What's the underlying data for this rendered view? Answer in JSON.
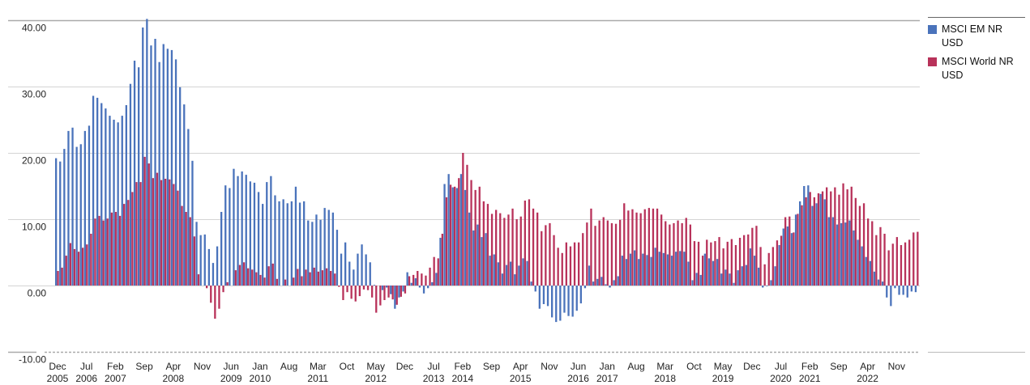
{
  "chart_data": {
    "type": "bar",
    "title": "",
    "xlabel": "",
    "ylabel": "",
    "ylim": [
      -10,
      40
    ],
    "yticks": [
      40,
      30,
      20,
      10,
      0,
      -10
    ],
    "ytick_labels": [
      "40.00",
      "30.00",
      "20.00",
      "10.00",
      "0.00",
      "-10.00"
    ],
    "grid": true,
    "legend_position": "right",
    "x_start": "Dec 2005",
    "x_end": "Apr 2023",
    "x_frequency": "monthly",
    "xtick_labels": [
      {
        "index": 0,
        "month": "Dec",
        "year": "2005"
      },
      {
        "index": 7,
        "month": "Jul",
        "year": "2006"
      },
      {
        "index": 14,
        "month": "Feb",
        "year": "2007"
      },
      {
        "index": 21,
        "month": "Sep",
        "year": ""
      },
      {
        "index": 28,
        "month": "Apr",
        "year": "2008"
      },
      {
        "index": 35,
        "month": "Nov",
        "year": ""
      },
      {
        "index": 42,
        "month": "Jun",
        "year": "2009"
      },
      {
        "index": 49,
        "month": "Jan",
        "year": "2010"
      },
      {
        "index": 56,
        "month": "Aug",
        "year": ""
      },
      {
        "index": 63,
        "month": "Mar",
        "year": "2011"
      },
      {
        "index": 70,
        "month": "Oct",
        "year": ""
      },
      {
        "index": 77,
        "month": "May",
        "year": "2012"
      },
      {
        "index": 84,
        "month": "Dec",
        "year": ""
      },
      {
        "index": 91,
        "month": "Jul",
        "year": "2013"
      },
      {
        "index": 98,
        "month": "Feb",
        "year": "2014"
      },
      {
        "index": 105,
        "month": "Sep",
        "year": ""
      },
      {
        "index": 112,
        "month": "Apr",
        "year": "2015"
      },
      {
        "index": 119,
        "month": "Nov",
        "year": ""
      },
      {
        "index": 126,
        "month": "Jun",
        "year": "2016"
      },
      {
        "index": 133,
        "month": "Jan",
        "year": "2017"
      },
      {
        "index": 140,
        "month": "Aug",
        "year": ""
      },
      {
        "index": 147,
        "month": "Mar",
        "year": "2018"
      },
      {
        "index": 154,
        "month": "Oct",
        "year": ""
      },
      {
        "index": 161,
        "month": "May",
        "year": "2019"
      },
      {
        "index": 168,
        "month": "Dec",
        "year": ""
      },
      {
        "index": 175,
        "month": "Jul",
        "year": "2020"
      },
      {
        "index": 182,
        "month": "Feb",
        "year": "2021"
      },
      {
        "index": 189,
        "month": "Sep",
        "year": ""
      },
      {
        "index": 196,
        "month": "Apr",
        "year": "2022"
      },
      {
        "index": 203,
        "month": "Nov",
        "year": ""
      }
    ],
    "series": [
      {
        "name": "MSCI EM NR USD",
        "color": "#4a73bb",
        "values": [
          19.2,
          18.7,
          20.6,
          23.3,
          23.8,
          20.9,
          21.3,
          23.3,
          24.1,
          28.6,
          28.3,
          27.5,
          26.7,
          25.6,
          25.0,
          24.6,
          25.6,
          27.2,
          30.4,
          33.9,
          32.9,
          38.9,
          40.2,
          36.2,
          37.2,
          33.7,
          36.4,
          35.7,
          35.5,
          34.1,
          29.9,
          27.3,
          23.6,
          18.8,
          9.6,
          7.6,
          7.7,
          5.5,
          3.4,
          5.9,
          11.1,
          15.1,
          14.7,
          17.6,
          16.5,
          17.2,
          16.7,
          15.7,
          15.5,
          14.1,
          12.3,
          15.6,
          16.5,
          13.6,
          12.7,
          13.0,
          12.4,
          12.7,
          14.9,
          12.5,
          12.7,
          9.8,
          9.6,
          10.7,
          9.9,
          11.7,
          11.4,
          11.0,
          8.4,
          4.8,
          6.5,
          3.6,
          2.4,
          4.8,
          6.2,
          4.7,
          3.5,
          0.1,
          0,
          -0.7,
          -0.3,
          -1.3,
          -3.5,
          -1.8,
          -0.9,
          2.0,
          0.4,
          1.1,
          -0.3,
          -1.2,
          -0.4,
          0.5,
          1.9,
          7.2,
          15.3,
          16.8,
          14.8,
          14.7,
          16.8,
          14.4,
          11.0,
          8.3,
          9.2,
          7.3,
          7.9,
          4.5,
          4.7,
          3.5,
          1.8,
          3.1,
          3.6,
          1.7,
          3.0,
          4.1,
          3.7,
          0.6,
          -0.9,
          -3.5,
          -2.8,
          -3.1,
          -4.8,
          -5.5,
          -5.3,
          -4.1,
          -4.6,
          -4.7,
          -3.8,
          -2.7,
          -0.4,
          3.0,
          0.6,
          1.0,
          1.3,
          0.2,
          -0.3,
          0.8,
          1.4,
          4.5,
          4.0,
          4.8,
          5.3,
          4.0,
          4.8,
          4.6,
          4.3,
          5.7,
          5.1,
          4.9,
          4.7,
          4.5,
          5.1,
          5.2,
          5.1,
          3.6,
          0.8,
          1.9,
          1.6,
          4.8,
          4.1,
          3.7,
          4.0,
          1.8,
          2.4,
          1.8,
          0.4,
          2.3,
          2.9,
          3.1,
          5.6,
          4.5,
          2.7,
          -0.3,
          -0.1,
          0.8,
          2.9,
          6.1,
          8.6,
          8.9,
          7.9,
          10.7,
          12.7,
          15.0,
          15.1,
          12.0,
          12.4,
          13.8,
          13.0,
          10.3,
          10.3,
          9.2,
          9.4,
          9.5,
          9.8,
          8.3,
          6.9,
          5.9,
          4.3,
          3.7,
          2.1,
          0.9,
          0.6,
          -1.8,
          -3.1,
          -0.4,
          -1.4,
          -1.4,
          -1.8,
          -0.9,
          -1.0
        ]
      },
      {
        "name": "MSCI World NR USD",
        "color": "#b8325a",
        "values": [
          2.2,
          2.7,
          4.5,
          6.4,
          5.5,
          5.1,
          5.7,
          6.2,
          7.8,
          10.1,
          10.5,
          9.8,
          10.1,
          11.0,
          11.1,
          10.5,
          12.3,
          12.9,
          14.1,
          15.6,
          15.6,
          19.4,
          18.4,
          16.2,
          17.0,
          15.9,
          16.1,
          16.0,
          15.3,
          14.3,
          12.0,
          11.1,
          10.3,
          7.4,
          1.7,
          0,
          -0.4,
          -2.6,
          -5.0,
          -3.5,
          -1.0,
          0.5,
          0,
          2.3,
          3.1,
          3.5,
          2.6,
          2.4,
          2.0,
          1.6,
          1.2,
          2.9,
          3.3,
          1.0,
          0,
          0.9,
          0,
          1.2,
          2.5,
          1.4,
          2.4,
          2.0,
          2.7,
          2.1,
          2.3,
          2.6,
          2.2,
          1.8,
          -0.2,
          -2.2,
          -1.0,
          -2.0,
          -2.4,
          -1.6,
          -0.6,
          -0.7,
          -1.8,
          -4.1,
          -3.0,
          -2.2,
          -1.8,
          -2.1,
          -2.9,
          -1.7,
          -1.2,
          1.4,
          1.6,
          2.2,
          1.8,
          1.5,
          2.7,
          4.3,
          4.1,
          7.8,
          13.3,
          15.2,
          14.9,
          16.2,
          20.0,
          18.2,
          15.9,
          14.4,
          14.9,
          12.7,
          12.3,
          10.8,
          11.4,
          10.9,
          10.2,
          10.7,
          11.6,
          10.0,
          10.4,
          12.8,
          13.0,
          11.6,
          11.0,
          8.2,
          9.1,
          9.4,
          7.6,
          5.7,
          4.9,
          6.5,
          5.9,
          6.5,
          6.5,
          7.9,
          9.5,
          11.6,
          9.0,
          9.8,
          10.3,
          9.8,
          9.4,
          9.3,
          9.9,
          12.4,
          11.3,
          11.5,
          11.0,
          10.9,
          11.5,
          11.7,
          11.6,
          11.6,
          10.7,
          9.7,
          9.2,
          9.4,
          9.8,
          9.4,
          10.2,
          9.2,
          6.7,
          6.6,
          4.5,
          6.9,
          6.5,
          6.7,
          7.3,
          5.6,
          6.6,
          7.0,
          6.1,
          7.2,
          7.6,
          7.7,
          8.7,
          9.0,
          5.8,
          3.2,
          4.9,
          5.8,
          6.8,
          7.5,
          10.3,
          10.4,
          8.0,
          10.8,
          12.1,
          13.3,
          14.1,
          13.3,
          13.9,
          14.2,
          14.8,
          14.2,
          14.8,
          13.7,
          15.4,
          14.5,
          14.9,
          13.2,
          12.0,
          12.4,
          10.1,
          9.7,
          7.6,
          8.8,
          7.8,
          5.3,
          6.3,
          7.3,
          6.1,
          6.5,
          6.9,
          8.0,
          8.1
        ]
      }
    ]
  },
  "legend": {
    "items": [
      {
        "label": "MSCI EM NR USD",
        "color": "#4a73bb"
      },
      {
        "label": "MSCI World NR USD",
        "color": "#b8325a"
      }
    ]
  }
}
